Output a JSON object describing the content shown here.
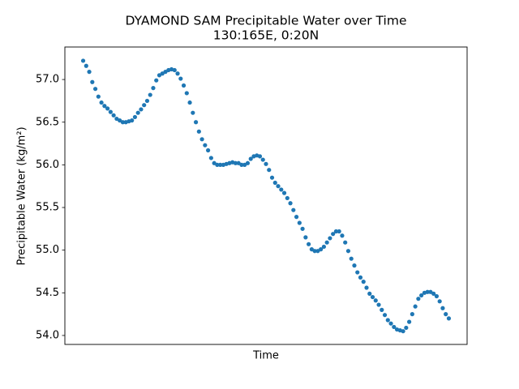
{
  "chart_data": {
    "type": "scatter",
    "title": "DYAMOND SAM Precipitable Water over Time",
    "subtitle": "130:165E, 0:20N",
    "xlabel": "Time",
    "ylabel": "Precipitable Water (kg/m²)",
    "color": "#1f77b4",
    "ylim": [
      53.895,
      57.381
    ],
    "yticks": [
      {
        "value": 54,
        "label": "54.0"
      },
      {
        "value": 54.5,
        "label": "54.5"
      },
      {
        "value": 55,
        "label": "55.0"
      },
      {
        "value": 55.5,
        "label": "55.5"
      },
      {
        "value": 56,
        "label": "56.0"
      },
      {
        "value": 56.5,
        "label": "56.5"
      },
      {
        "value": 57,
        "label": "57.0"
      }
    ],
    "grid": false,
    "values": [
      57.22,
      57.16,
      57.09,
      56.97,
      56.89,
      56.8,
      56.73,
      56.69,
      56.66,
      56.62,
      56.58,
      56.54,
      56.52,
      56.5,
      56.5,
      56.51,
      56.52,
      56.56,
      56.61,
      56.65,
      56.7,
      56.75,
      56.82,
      56.9,
      56.99,
      57.05,
      57.07,
      57.09,
      57.11,
      57.12,
      57.11,
      57.07,
      57.01,
      56.93,
      56.84,
      56.73,
      56.61,
      56.5,
      56.39,
      56.3,
      56.23,
      56.17,
      56.08,
      56.02,
      56.0,
      56.0,
      56.0,
      56.01,
      56.02,
      56.03,
      56.02,
      56.02,
      56.0,
      56.0,
      56.02,
      56.07,
      56.1,
      56.11,
      56.1,
      56.06,
      56.01,
      55.94,
      55.85,
      55.79,
      55.75,
      55.71,
      55.67,
      55.61,
      55.55,
      55.47,
      55.39,
      55.32,
      55.25,
      55.15,
      55.07,
      55.01,
      54.99,
      54.99,
      55.01,
      55.04,
      55.09,
      55.14,
      55.19,
      55.22,
      55.22,
      55.17,
      55.09,
      54.99,
      54.9,
      54.82,
      54.74,
      54.68,
      54.63,
      54.56,
      54.49,
      54.45,
      54.41,
      54.36,
      54.3,
      54.24,
      54.18,
      54.14,
      54.1,
      54.07,
      54.06,
      54.05,
      54.09,
      54.16,
      54.25,
      54.34,
      54.43,
      54.47,
      54.5,
      54.51,
      54.51,
      54.49,
      54.46,
      54.4,
      54.32,
      54.25,
      54.2
    ]
  }
}
